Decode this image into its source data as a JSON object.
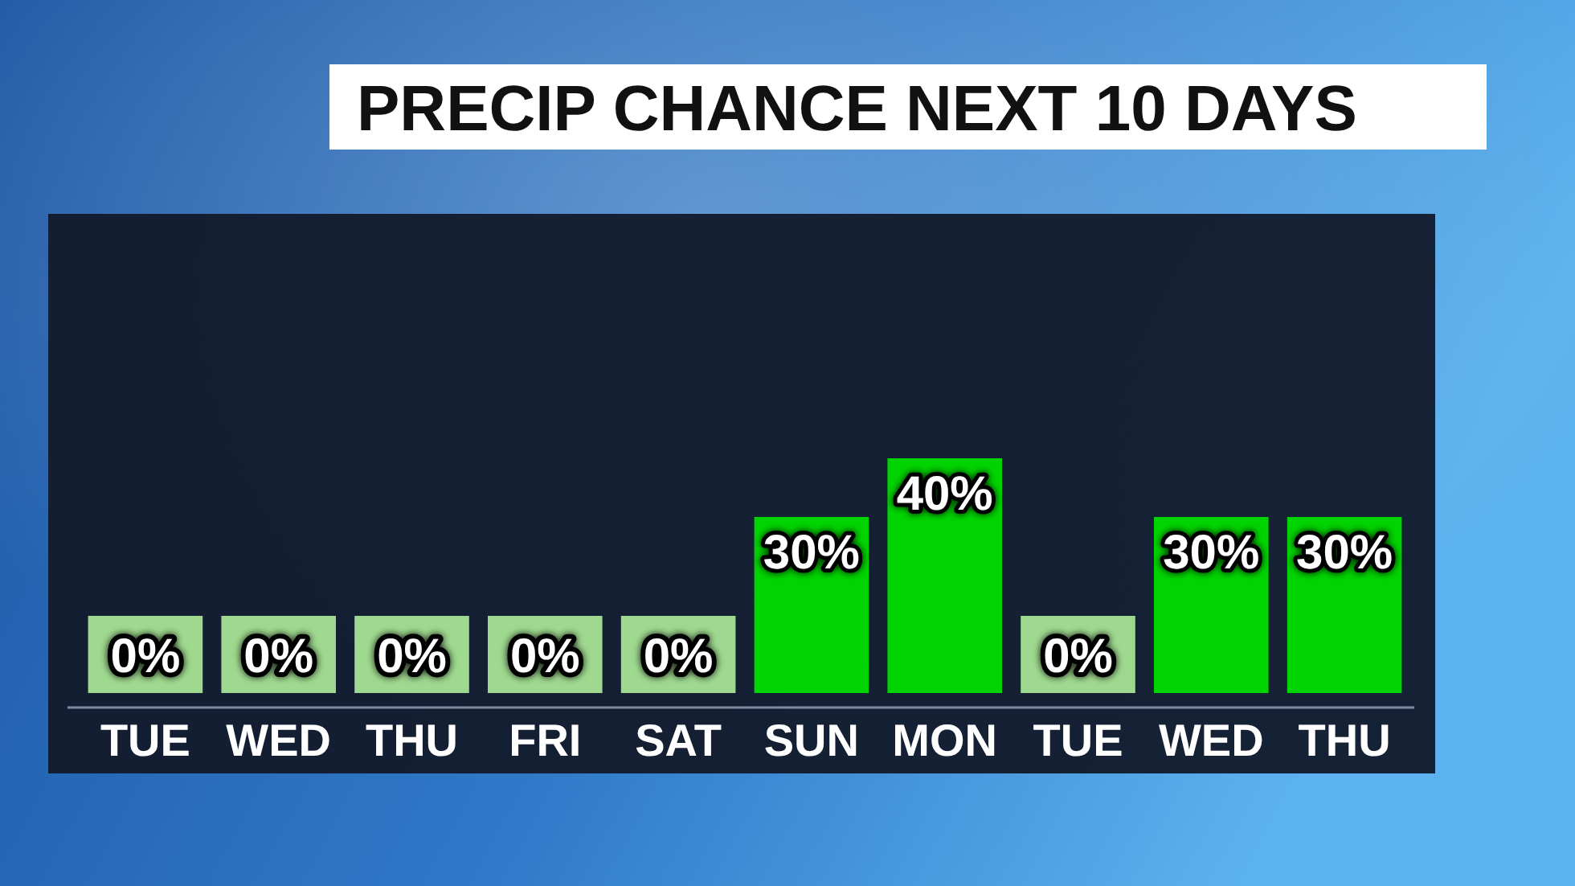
{
  "chart_data": {
    "type": "bar",
    "title": "PRECIP CHANCE NEXT 10 DAYS",
    "categories": [
      "TUE",
      "WED",
      "THU",
      "FRI",
      "SAT",
      "SUN",
      "MON",
      "TUE",
      "WED",
      "THU"
    ],
    "values": [
      0,
      0,
      0,
      0,
      0,
      30,
      40,
      0,
      30,
      30
    ],
    "color": "#00d400",
    "value_labels": [
      "0%",
      "0%",
      "0%",
      "0%",
      "0%",
      "30%",
      "40%",
      "0%",
      "30%",
      "30%"
    ]
  }
}
